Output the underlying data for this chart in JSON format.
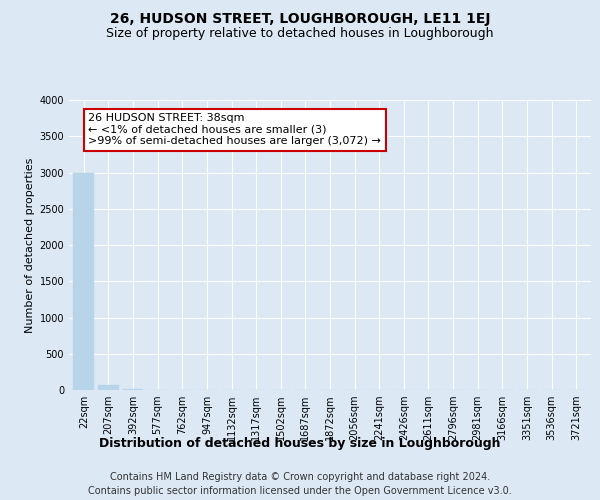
{
  "title": "26, HUDSON STREET, LOUGHBOROUGH, LE11 1EJ",
  "subtitle": "Size of property relative to detached houses in Loughborough",
  "xlabel": "Distribution of detached houses by size in Loughborough",
  "ylabel": "Number of detached properties",
  "footer_line1": "Contains HM Land Registry data © Crown copyright and database right 2024.",
  "footer_line2": "Contains public sector information licensed under the Open Government Licence v3.0.",
  "bin_labels": [
    "22sqm",
    "207sqm",
    "392sqm",
    "577sqm",
    "762sqm",
    "947sqm",
    "1132sqm",
    "1317sqm",
    "1502sqm",
    "1687sqm",
    "1872sqm",
    "2056sqm",
    "2241sqm",
    "2426sqm",
    "2611sqm",
    "2796sqm",
    "2981sqm",
    "3166sqm",
    "3351sqm",
    "3536sqm",
    "3721sqm"
  ],
  "bar_values": [
    2990,
    65,
    10,
    3,
    2,
    1,
    1,
    1,
    1,
    0,
    0,
    0,
    0,
    0,
    0,
    0,
    0,
    0,
    0,
    0,
    0
  ],
  "bar_color": "#b8d4e8",
  "annotation_box_text": "26 HUDSON STREET: 38sqm\n← <1% of detached houses are smaller (3)\n>99% of semi-detached houses are larger (3,072) →",
  "annotation_box_edge_color": "#cc0000",
  "annotation_box_facecolor": "#ffffff",
  "ylim": [
    0,
    4000
  ],
  "yticks": [
    0,
    500,
    1000,
    1500,
    2000,
    2500,
    3000,
    3500,
    4000
  ],
  "background_color": "#dce9f5",
  "plot_bg_color": "#dce9f5",
  "grid_color": "#ffffff",
  "title_fontsize": 10,
  "subtitle_fontsize": 9,
  "ylabel_fontsize": 8,
  "xlabel_fontsize": 9,
  "tick_fontsize": 7,
  "annotation_fontsize": 8,
  "footer_fontsize": 7
}
